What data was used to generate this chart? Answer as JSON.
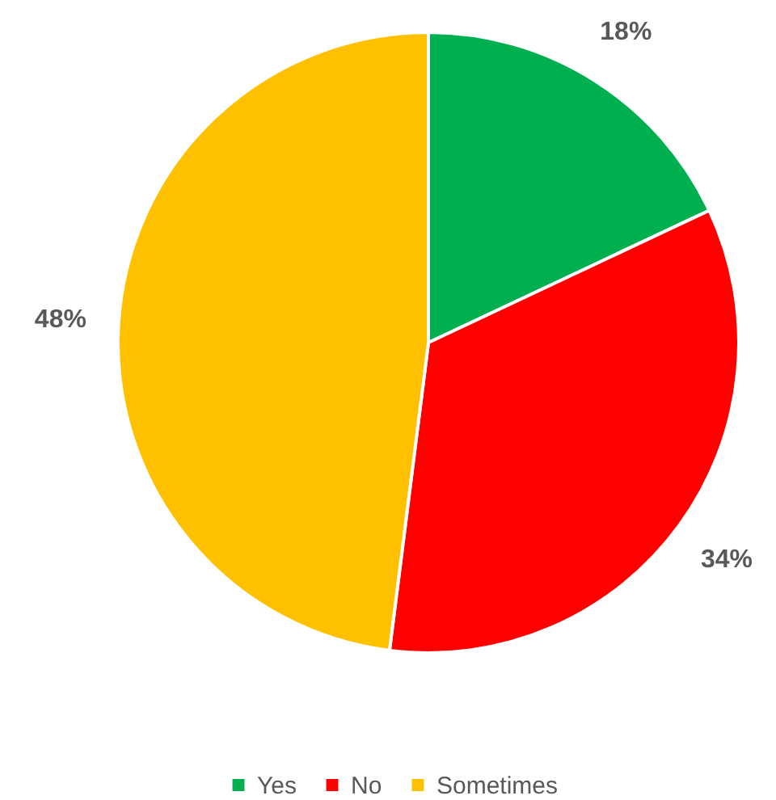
{
  "chart_data": {
    "type": "pie",
    "categories": [
      "Yes",
      "No",
      "Sometimes"
    ],
    "values": [
      18,
      34,
      48
    ],
    "colors": [
      "#00b050",
      "#ff0000",
      "#ffc000"
    ],
    "value_labels": [
      "18%",
      "34%",
      "48%"
    ],
    "legend": "bottom"
  }
}
